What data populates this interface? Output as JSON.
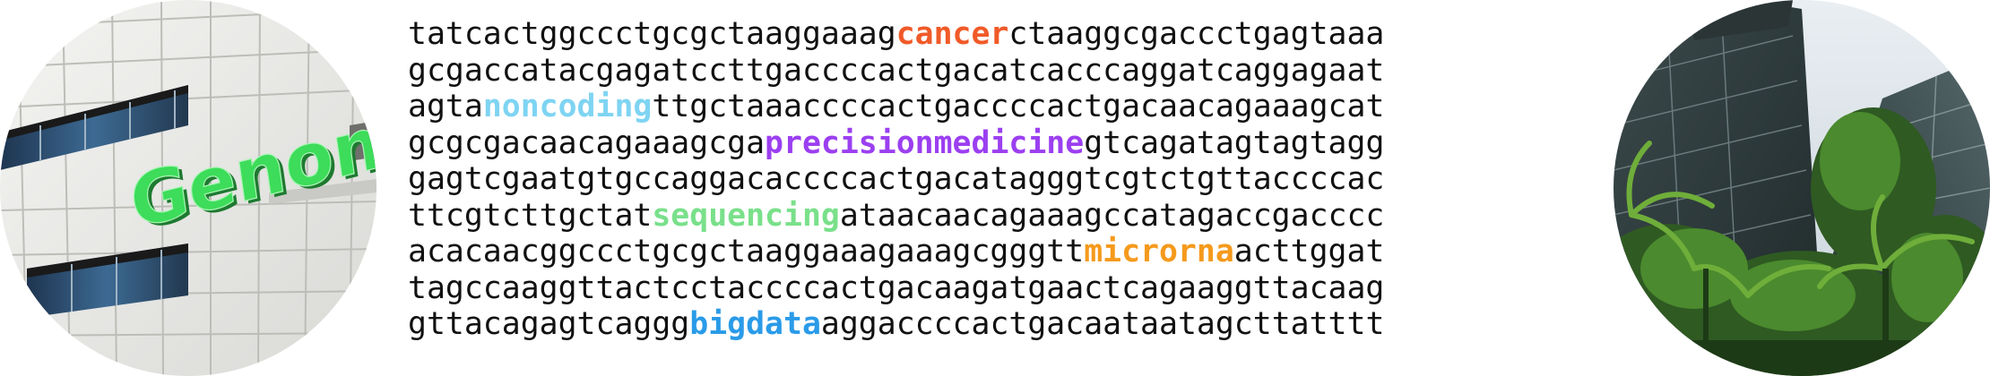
{
  "left_image": {
    "description_icon": "genome-building-photo-icon",
    "sign_text": "Genome",
    "sign_color": "#3ddc5a"
  },
  "right_image": {
    "description_icon": "atrium-building-with-palms-photo-icon"
  },
  "sequence_lines": [
    {
      "pre": "tatcactggccctgcgctaaggaaag",
      "kw": "cancer",
      "post": "ctaaggcgaccctgagtaaa",
      "color": "#f05a28"
    },
    {
      "pre": "gcgaccatacgagatccttgaccccactgacatcacccaggatcaggagaat",
      "kw": "",
      "post": "",
      "color": ""
    },
    {
      "pre": "agta",
      "kw": "noncoding",
      "post": "ttgctaaaccccactgaccccactgacaacagaaagcat",
      "color": "#7ed4f2"
    },
    {
      "pre": "gcgcgacaacagaaagcga",
      "kw": "precisionmedicine",
      "post": "gtcagatagtagtagg",
      "color": "#9b3ff0"
    },
    {
      "pre": "gagtcgaatgtgccaggacaccccactgacatagggtcgtctgttaccccac",
      "kw": "",
      "post": "",
      "color": ""
    },
    {
      "pre": "ttcgtcttgctat",
      "kw": "sequencing",
      "post": "ataacaacagaaagccatagaccgacccc",
      "color": "#79e08a"
    },
    {
      "pre": "acacaacggccctgcgctaaggaaagaaagcgggtt",
      "kw": "microrna",
      "post": "acttggat",
      "color": "#f59a1c"
    },
    {
      "pre": "tagccaaggttactcctaccccactgacaagatgaactcagaaggttacaag",
      "kw": "",
      "post": "",
      "color": ""
    },
    {
      "pre": "gttacagagtcaggg",
      "kw": "bigdata",
      "post": "aggaccccactgacaataatagcttatttt",
      "color": "#2a9be8"
    }
  ]
}
